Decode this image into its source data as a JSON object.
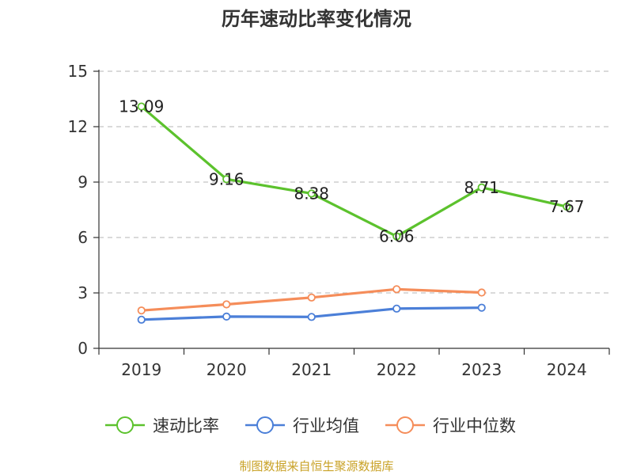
{
  "chart_data": {
    "type": "line",
    "title": "历年速动比率变化情况",
    "categories": [
      "2019",
      "2020",
      "2021",
      "2022",
      "2023",
      "2024"
    ],
    "ylim": [
      0,
      15
    ],
    "yticks": [
      0,
      3,
      6,
      9,
      12,
      15
    ],
    "grid": true,
    "legend_position": "bottom",
    "series": [
      {
        "name": "速动比率",
        "color": "#5cc22d",
        "values": [
          13.09,
          9.16,
          8.38,
          6.06,
          8.71,
          7.67
        ],
        "labels": [
          "13.09",
          "9.16",
          "8.38",
          "6.06",
          "8.71",
          "7.67"
        ]
      },
      {
        "name": "行业均值",
        "color": "#4b7fd8",
        "values": [
          1.55,
          1.72,
          1.7,
          2.15,
          2.2,
          null
        ]
      },
      {
        "name": "行业中位数",
        "color": "#f58d5a",
        "values": [
          2.05,
          2.38,
          2.75,
          3.2,
          3.02,
          null
        ]
      }
    ]
  },
  "source_text": "制图数据来自恒生聚源数据库"
}
